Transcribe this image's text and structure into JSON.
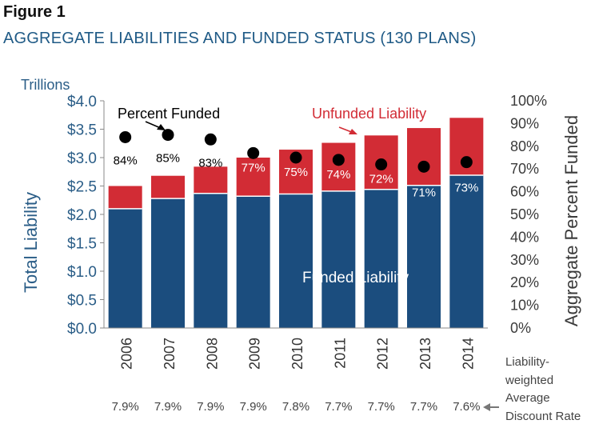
{
  "figure_label": "Figure 1",
  "title": "AGGREGATE LIABILITIES AND FUNDED STATUS (130 PLANS)",
  "colors": {
    "funded": "#1b4d7e",
    "unfunded": "#d22c35",
    "marker": "#000000",
    "axis_text": "#2a5d87"
  },
  "chart_data": {
    "type": "bar",
    "stacked": true,
    "categories": [
      "2006",
      "2007",
      "2008",
      "2009",
      "2010",
      "2011",
      "2012",
      "2013",
      "2014"
    ],
    "series": [
      {
        "name": "Funded Liability",
        "values": [
          2.1,
          2.28,
          2.37,
          2.32,
          2.36,
          2.41,
          2.44,
          2.51,
          2.69
        ]
      },
      {
        "name": "Unfunded Liability",
        "values": [
          0.4,
          0.4,
          0.47,
          0.68,
          0.78,
          0.85,
          0.95,
          1.01,
          1.01
        ]
      }
    ],
    "percent_funded": {
      "name": "Percent Funded",
      "values": [
        84,
        85,
        83,
        77,
        75,
        74,
        72,
        71,
        73
      ],
      "labels": [
        "84%",
        "85%",
        "83%",
        "77%",
        "75%",
        "74%",
        "72%",
        "71%",
        "73%"
      ]
    },
    "discount_rates": [
      "7.9%",
      "7.9%",
      "7.9%",
      "7.9%",
      "7.8%",
      "7.7%",
      "7.7%",
      "7.7%",
      "7.6%"
    ],
    "discount_rate_label": [
      "Liability-",
      "weighted",
      "Average",
      "Discount Rate"
    ],
    "ylabel": "Total Liability",
    "y_unit": "Trillions",
    "ylim": [
      0,
      4
    ],
    "yticks": [
      "$0.0",
      "$0.5",
      "$1.0",
      "$1.5",
      "$2.0",
      "$2.5",
      "$3.0",
      "$3.5",
      "$4.0"
    ],
    "y2label": "Aggregate Percent Funded",
    "y2lim": [
      0,
      100
    ],
    "y2ticks": [
      "0%",
      "10%",
      "20%",
      "30%",
      "40%",
      "50%",
      "60%",
      "70%",
      "80%",
      "90%",
      "100%"
    ],
    "annotations": {
      "funded_inside": "Funded Liability",
      "unfunded": "Unfunded Liability",
      "percent_funded": "Percent Funded"
    }
  }
}
